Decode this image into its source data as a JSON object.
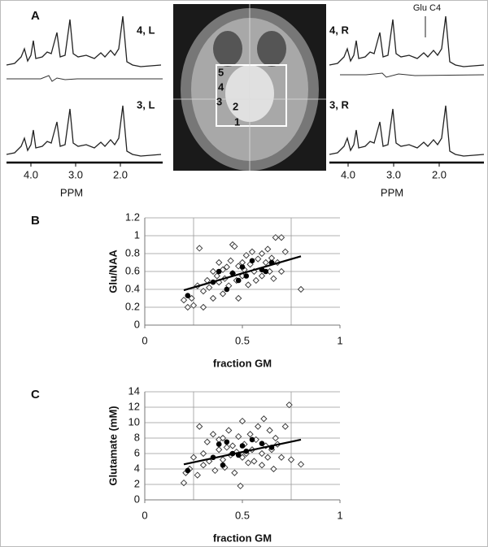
{
  "panel_a": {
    "label": "A",
    "spectra_labels": [
      "4, L",
      "3, L",
      "4, R",
      "3, R"
    ],
    "annotation": "Glu C4",
    "xticks": [
      {
        "value": 4,
        "label": "4.0"
      },
      {
        "value": 3,
        "label": "3.0"
      },
      {
        "value": 2,
        "label": "2.0"
      }
    ],
    "x_label": "PPM",
    "voxel_labels": [
      "5",
      "4",
      "3",
      "2",
      "1"
    ]
  },
  "chart_data": [
    {
      "type": "scatter",
      "panel_label": "B",
      "y_label": "Glu/NAA",
      "x_label": "fraction GM",
      "xlim": [
        0,
        1
      ],
      "ylim": [
        0,
        1.2
      ],
      "xticks": [
        0,
        0.5,
        1
      ],
      "yticks": [
        0,
        0.2,
        0.4,
        0.6,
        0.8,
        1,
        1.2
      ],
      "x_gridlines": [
        0.25,
        0.75
      ],
      "grid": true,
      "series": [
        {
          "color": "#333333",
          "marker": "diamond",
          "x": [
            0.2,
            0.22,
            0.24,
            0.25,
            0.27,
            0.28,
            0.3,
            0.3,
            0.32,
            0.33,
            0.35,
            0.35,
            0.37,
            0.38,
            0.38,
            0.4,
            0.4,
            0.41,
            0.42,
            0.43,
            0.44,
            0.45,
            0.45,
            0.46,
            0.47,
            0.48,
            0.48,
            0.5,
            0.5,
            0.51,
            0.52,
            0.53,
            0.54,
            0.55,
            0.56,
            0.57,
            0.58,
            0.6,
            0.6,
            0.62,
            0.63,
            0.64,
            0.65,
            0.66,
            0.67,
            0.68,
            0.7,
            0.7,
            0.72,
            0.8
          ],
          "values": [
            0.28,
            0.2,
            0.3,
            0.22,
            0.44,
            0.86,
            0.2,
            0.38,
            0.5,
            0.42,
            0.6,
            0.3,
            0.55,
            0.48,
            0.7,
            0.62,
            0.35,
            0.52,
            0.65,
            0.44,
            0.72,
            0.58,
            0.9,
            0.88,
            0.5,
            0.66,
            0.3,
            0.7,
            0.55,
            0.62,
            0.78,
            0.45,
            0.68,
            0.82,
            0.6,
            0.5,
            0.74,
            0.8,
            0.55,
            0.7,
            0.85,
            0.6,
            0.75,
            0.52,
            0.98,
            0.7,
            0.98,
            0.6,
            0.82,
            0.4
          ]
        },
        {
          "color": "#000000",
          "marker": "circle",
          "x": [
            0.22,
            0.35,
            0.38,
            0.42,
            0.45,
            0.5,
            0.52,
            0.55,
            0.6,
            0.62,
            0.65,
            0.48
          ],
          "values": [
            0.33,
            0.48,
            0.6,
            0.4,
            0.58,
            0.65,
            0.55,
            0.72,
            0.62,
            0.6,
            0.7,
            0.5
          ]
        }
      ],
      "trendline": {
        "x": [
          0.2,
          0.8
        ],
        "y": [
          0.39,
          0.77
        ]
      }
    },
    {
      "type": "scatter",
      "panel_label": "C",
      "y_label": "Glutamate (mM)",
      "x_label": "fraction GM",
      "xlim": [
        0,
        1
      ],
      "ylim": [
        0,
        14
      ],
      "xticks": [
        0,
        0.5,
        1
      ],
      "yticks": [
        0,
        2,
        4,
        6,
        8,
        10,
        12,
        14
      ],
      "x_gridlines": [
        0.25,
        0.75
      ],
      "grid": true,
      "series": [
        {
          "color": "#333333",
          "marker": "diamond",
          "x": [
            0.2,
            0.21,
            0.23,
            0.25,
            0.27,
            0.28,
            0.3,
            0.3,
            0.32,
            0.33,
            0.35,
            0.36,
            0.38,
            0.38,
            0.4,
            0.4,
            0.41,
            0.42,
            0.43,
            0.44,
            0.45,
            0.46,
            0.47,
            0.48,
            0.49,
            0.5,
            0.5,
            0.51,
            0.52,
            0.53,
            0.54,
            0.55,
            0.56,
            0.57,
            0.58,
            0.6,
            0.6,
            0.61,
            0.62,
            0.63,
            0.64,
            0.65,
            0.66,
            0.67,
            0.68,
            0.7,
            0.72,
            0.74,
            0.75,
            0.8
          ],
          "values": [
            2.2,
            3.5,
            4,
            5.5,
            3.2,
            9.5,
            6,
            4.5,
            7.5,
            5,
            8.5,
            3.8,
            6.5,
            7.8,
            5.2,
            8,
            4.2,
            6.8,
            9,
            5.8,
            7,
            3.5,
            6.2,
            8.2,
            1.8,
            10.2,
            5.5,
            7.2,
            6,
            4.8,
            8.5,
            6.5,
            5,
            7.8,
            9.5,
            6,
            4.5,
            10.5,
            7,
            5.5,
            9,
            6.5,
            4,
            8,
            7.2,
            5.5,
            9.5,
            12.3,
            5.2,
            4.6
          ]
        },
        {
          "color": "#000000",
          "marker": "circle",
          "x": [
            0.22,
            0.35,
            0.38,
            0.4,
            0.42,
            0.45,
            0.48,
            0.5,
            0.52,
            0.55,
            0.6,
            0.65
          ],
          "values": [
            3.8,
            5.5,
            7.2,
            4.5,
            7.5,
            6,
            5.8,
            7,
            6.3,
            7.8,
            7.3,
            6.8
          ]
        }
      ],
      "trendline": {
        "x": [
          0.2,
          0.8
        ],
        "y": [
          4.6,
          7.8
        ]
      }
    }
  ]
}
